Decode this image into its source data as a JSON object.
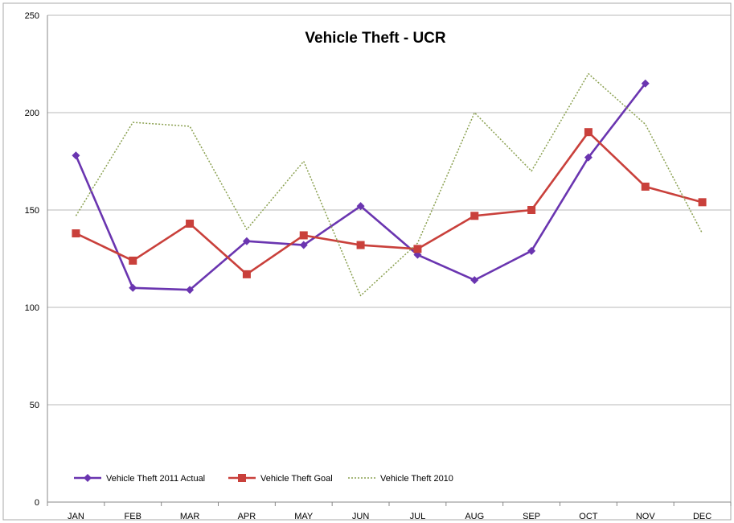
{
  "colors": {
    "actual_2011": "#6a35b0",
    "goal": "#c9403b",
    "theft_2010": "#8aa050",
    "gridline": "#b8b8b8",
    "axis": "#888888",
    "frame": "#aaaaaa"
  },
  "chart_data": {
    "type": "line",
    "title": "Vehicle Theft - UCR",
    "xlabel": "",
    "ylabel": "",
    "ylim": [
      0,
      250
    ],
    "yticks": [
      0,
      50,
      100,
      150,
      200,
      250
    ],
    "categories": [
      "JAN",
      "FEB",
      "MAR",
      "APR",
      "MAY",
      "JUN",
      "JUL",
      "AUG",
      "SEP",
      "OCT",
      "NOV",
      "DEC"
    ],
    "grid": "horizontal",
    "legend_position": "bottom-left",
    "series": [
      {
        "name": "Vehicle Theft 2011 Actual",
        "marker": "diamond",
        "style": "solid",
        "values": [
          178,
          110,
          109,
          134,
          132,
          152,
          127,
          114,
          129,
          177,
          215,
          null
        ]
      },
      {
        "name": "Vehicle Theft Goal",
        "marker": "square",
        "style": "solid",
        "values": [
          138,
          124,
          143,
          117,
          137,
          132,
          130,
          147,
          150,
          190,
          162,
          154
        ]
      },
      {
        "name": "Vehicle Theft 2010",
        "marker": "none",
        "style": "dotted",
        "values": [
          147,
          195,
          193,
          140,
          175,
          106,
          133,
          200,
          170,
          220,
          194,
          138
        ]
      }
    ]
  }
}
